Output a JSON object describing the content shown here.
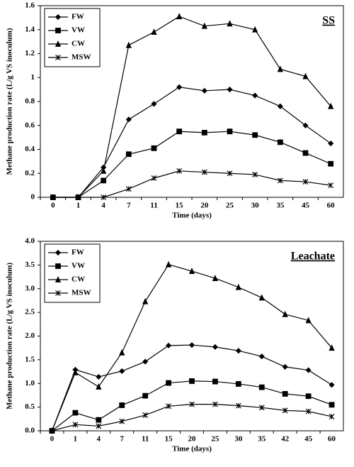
{
  "chart_data": [
    {
      "type": "line",
      "annotation": "SS",
      "x_label": "Time (days)",
      "y_label": "Methane production rate (L/g VS inoculum)",
      "categories": [
        "0",
        "1",
        "4",
        "7",
        "11",
        "15",
        "20",
        "25",
        "30",
        "35",
        "45",
        "60"
      ],
      "ylim": [
        0,
        1.6
      ],
      "yticks": [
        0,
        0.2,
        0.4,
        0.6,
        0.8,
        1,
        1.2,
        1.4,
        1.6
      ],
      "legend": "upper left",
      "series": [
        {
          "name": "FW",
          "color": "#000000",
          "marker": "diamond",
          "values": [
            0,
            0,
            0.25,
            0.65,
            0.78,
            0.92,
            0.89,
            0.9,
            0.85,
            0.76,
            0.6,
            0.45
          ]
        },
        {
          "name": "VW",
          "color": "#000000",
          "marker": "square",
          "values": [
            0,
            0,
            0.14,
            0.36,
            0.41,
            0.55,
            0.54,
            0.55,
            0.52,
            0.46,
            0.37,
            0.28
          ]
        },
        {
          "name": "CW",
          "color": "#000000",
          "marker": "triangle",
          "values": [
            0,
            0,
            0.22,
            1.27,
            1.38,
            1.51,
            1.43,
            1.45,
            1.4,
            1.07,
            1.01,
            0.76
          ]
        },
        {
          "name": "MSW",
          "color": "#000000",
          "marker": "star",
          "values": [
            0,
            0,
            0,
            0.07,
            0.16,
            0.22,
            0.21,
            0.2,
            0.19,
            0.14,
            0.13,
            0.1
          ]
        }
      ]
    },
    {
      "type": "line",
      "annotation": "Leachate",
      "x_label": "Time (days)",
      "y_label": "Methane production rate (L/g VS inoculum)",
      "categories": [
        "0",
        "1",
        "4",
        "7",
        "11",
        "15",
        "20",
        "25",
        "30",
        "35",
        "42",
        "45",
        "60"
      ],
      "ylim": [
        0,
        4
      ],
      "yticks": [
        {
          "value": 0,
          "label": "0.0"
        },
        0.5,
        {
          "value": 1,
          "label": "1.0"
        },
        1.5,
        {
          "value": 2,
          "label": "2.0"
        },
        2.5,
        {
          "value": 3,
          "label": "3.0"
        },
        3.5,
        {
          "value": 4,
          "label": "4.0"
        }
      ],
      "legend": "upper left",
      "series": [
        {
          "name": "FW",
          "color": "#000000",
          "marker": "diamond",
          "values": [
            0,
            1.29,
            1.14,
            1.26,
            1.46,
            1.8,
            1.81,
            1.77,
            1.69,
            1.57,
            1.35,
            1.28,
            0.97
          ]
        },
        {
          "name": "VW",
          "color": "#000000",
          "marker": "square",
          "values": [
            0,
            0.38,
            0.23,
            0.54,
            0.74,
            1.01,
            1.05,
            1.04,
            0.99,
            0.92,
            0.78,
            0.73,
            0.55
          ]
        },
        {
          "name": "CW",
          "color": "#000000",
          "marker": "triangle",
          "values": [
            0,
            1.23,
            0.93,
            1.65,
            2.73,
            3.51,
            3.37,
            3.22,
            3.03,
            2.81,
            2.46,
            2.33,
            1.75
          ]
        },
        {
          "name": "MSW",
          "color": "#000000",
          "marker": "star",
          "values": [
            0,
            0.13,
            0.1,
            0.2,
            0.33,
            0.52,
            0.56,
            0.56,
            0.53,
            0.49,
            0.43,
            0.41,
            0.3
          ]
        }
      ]
    }
  ]
}
